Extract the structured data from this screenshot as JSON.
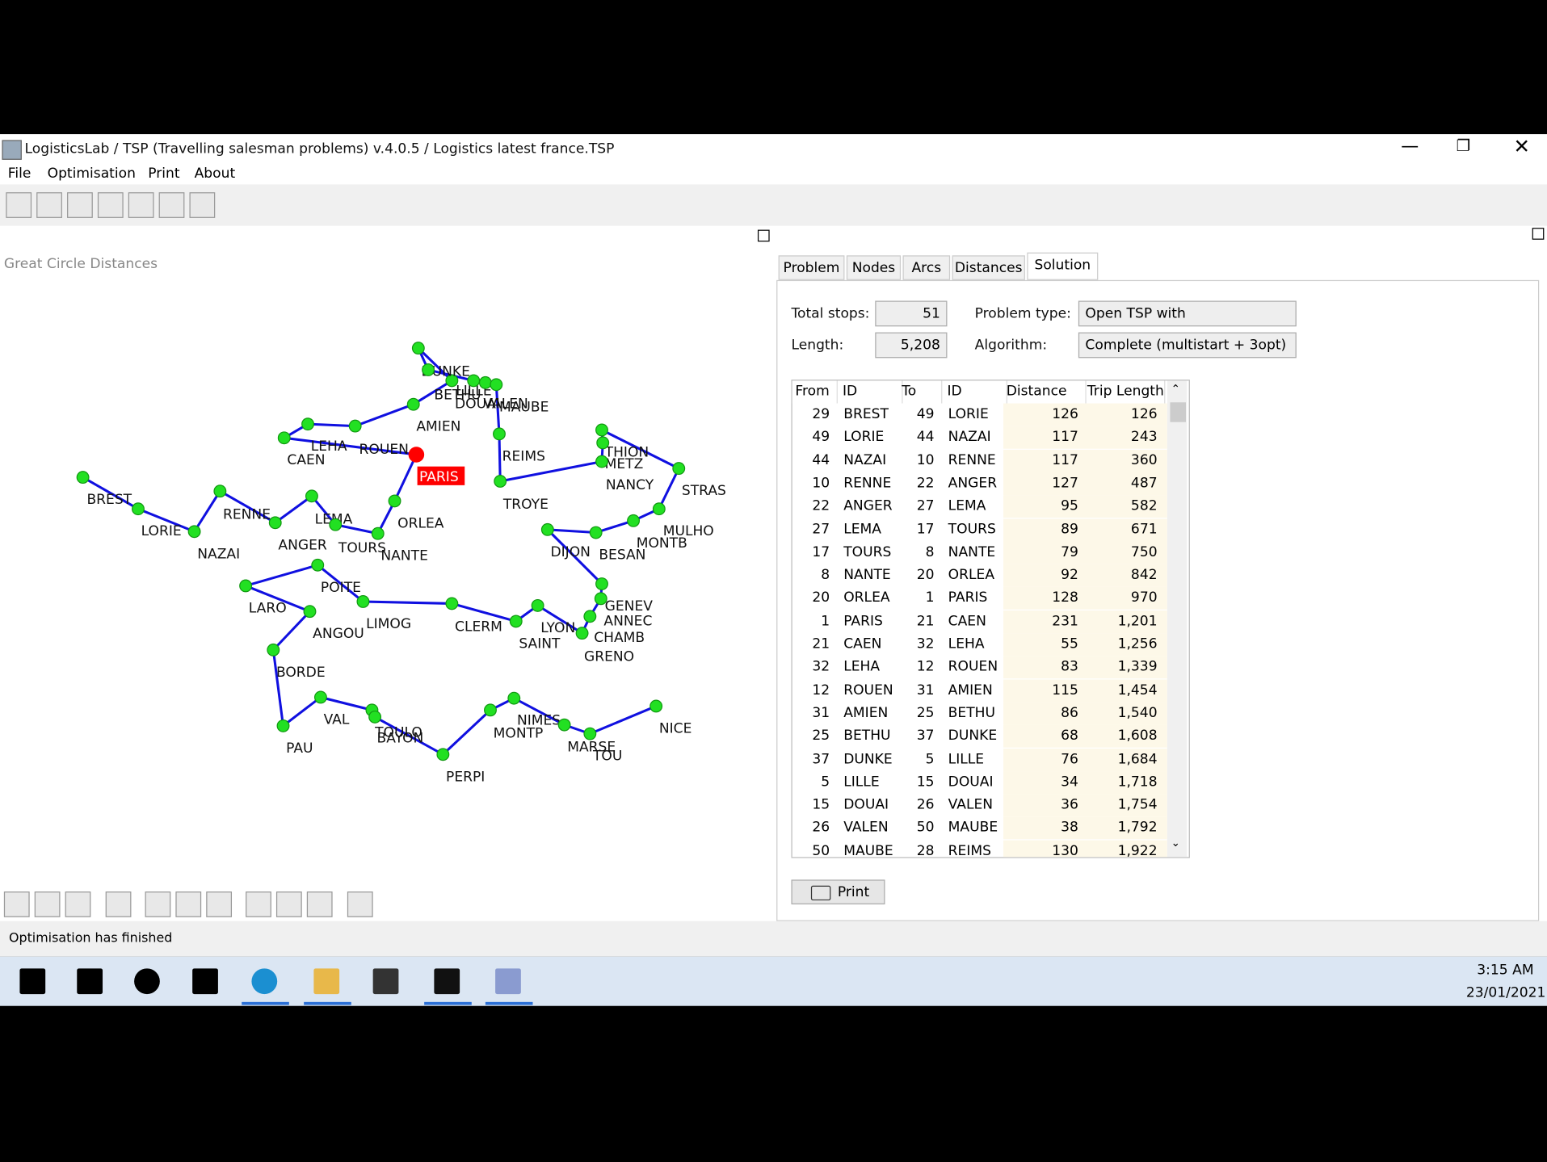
{
  "window": {
    "title": "LogisticsLab / TSP (Travelling salesman problems) v.4.0.5 / Logistics latest france.TSP",
    "menu": [
      "File",
      "Optimisation",
      "Print",
      "About"
    ]
  },
  "map": {
    "title": "Great Circle Distances",
    "nodes": [
      "BREST",
      "LORIE",
      "NAZAI",
      "RENNE",
      "ANGER",
      "LEMA",
      "TOURS",
      "NANTE",
      "ORLEA",
      "PARIS",
      "CAEN",
      "LEHA",
      "ROUEN",
      "AMIEN",
      "BETHU",
      "DUNKE",
      "LILLE",
      "DOUAI",
      "VALEN",
      "MAUBE",
      "REIMS",
      "TROYE",
      "THION",
      "METZ",
      "NANCY",
      "STRAS",
      "MULHO",
      "MONTB",
      "BESAN",
      "DIJON",
      "GENEV",
      "ANNEC",
      "CHAMB",
      "GRENO",
      "LYON",
      "SAINT",
      "CLERM",
      "LIMOG",
      "POITE",
      "ANGOU",
      "LARO",
      "BORDE",
      "PAU",
      "VAL",
      "TOULO",
      "BAYON",
      "PERPI",
      "MONTP",
      "NIMES",
      "MARSE",
      "TOU",
      "NICE"
    ]
  },
  "tabs": [
    "Problem",
    "Nodes",
    "Arcs",
    "Distances",
    "Solution"
  ],
  "solution": {
    "total_stops_label": "Total stops:",
    "total_stops": 51,
    "length_label": "Length:",
    "length": "5,208",
    "problem_type_label": "Problem type:",
    "problem_type": "Open TSP with",
    "algorithm_label": "Algorithm:",
    "algorithm": "Complete (multistart + 3opt)"
  },
  "table": {
    "headers": [
      "From",
      "ID",
      "To",
      "ID",
      "Distance",
      "Trip Length"
    ],
    "rows": [
      [
        29,
        "BREST",
        49,
        "LORIE",
        126,
        126
      ],
      [
        49,
        "LORIE",
        44,
        "NAZAI",
        117,
        243
      ],
      [
        44,
        "NAZAI",
        10,
        "RENNE",
        117,
        360
      ],
      [
        10,
        "RENNE",
        22,
        "ANGER",
        127,
        487
      ],
      [
        22,
        "ANGER",
        27,
        "LEMA",
        95,
        582
      ],
      [
        27,
        "LEMA",
        17,
        "TOURS",
        89,
        671
      ],
      [
        17,
        "TOURS",
        8,
        "NANTE",
        79,
        750
      ],
      [
        8,
        "NANTE",
        20,
        "ORLEA",
        92,
        842
      ],
      [
        20,
        "ORLEA",
        1,
        "PARIS",
        128,
        970
      ],
      [
        1,
        "PARIS",
        21,
        "CAEN",
        231,
        "1,201"
      ],
      [
        21,
        "CAEN",
        32,
        "LEHA",
        55,
        "1,256"
      ],
      [
        32,
        "LEHA",
        12,
        "ROUEN",
        83,
        "1,339"
      ],
      [
        12,
        "ROUEN",
        31,
        "AMIEN",
        115,
        "1,454"
      ],
      [
        31,
        "AMIEN",
        25,
        "BETHU",
        86,
        "1,540"
      ],
      [
        25,
        "BETHU",
        37,
        "DUNKE",
        68,
        "1,608"
      ],
      [
        37,
        "DUNKE",
        5,
        "LILLE",
        76,
        "1,684"
      ],
      [
        5,
        "LILLE",
        15,
        "DOUAI",
        34,
        "1,718"
      ],
      [
        15,
        "DOUAI",
        26,
        "VALEN",
        36,
        "1,754"
      ],
      [
        26,
        "VALEN",
        50,
        "MAUBE",
        38,
        "1,792"
      ],
      [
        50,
        "MAUBE",
        28,
        "REIMS",
        130,
        "1,922"
      ]
    ]
  },
  "print_button": "Print",
  "status": "Optimisation has finished",
  "clock": {
    "time": "3:15 AM",
    "date": "23/01/2021"
  }
}
